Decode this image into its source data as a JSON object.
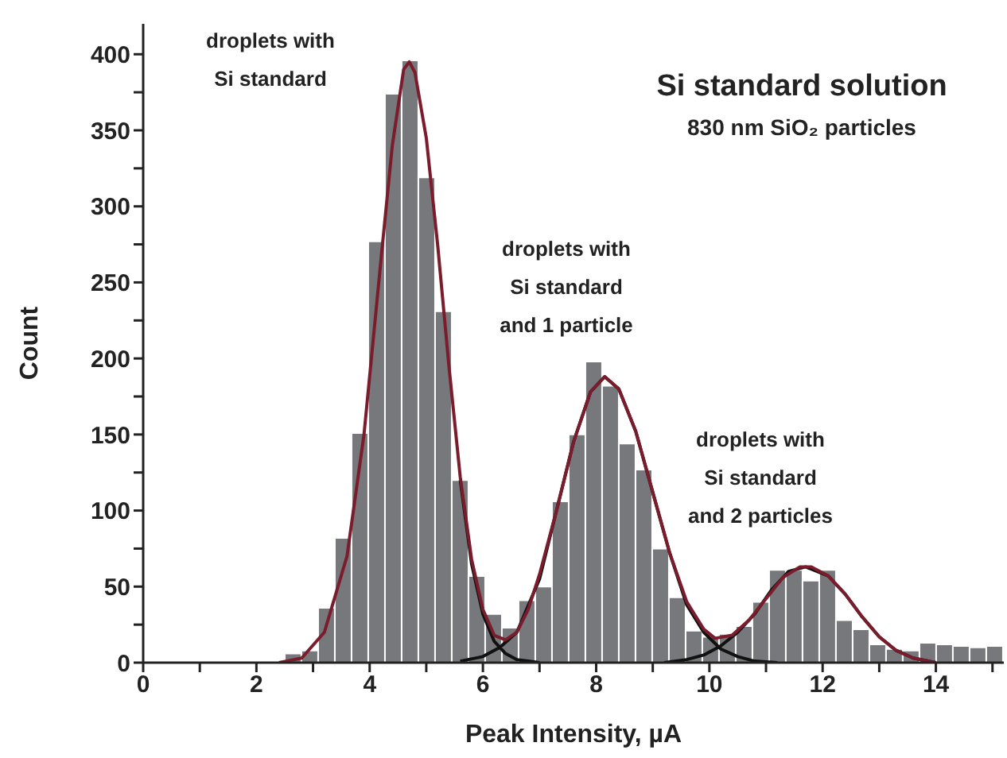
{
  "chart_data": {
    "type": "histogram",
    "title": "Si standard solution",
    "subtitle": "830 nm SiO₂ particles",
    "xlabel": "Peak Intensity, µA",
    "ylabel": "Count",
    "color": "#77787b",
    "bins": [
      1.91,
      2.205,
      2.5,
      2.795,
      3.09,
      3.385,
      3.68,
      3.975,
      4.27,
      4.565,
      4.86,
      5.155,
      5.45,
      5.745,
      6.04,
      6.335,
      6.63,
      6.925,
      7.22,
      7.515,
      7.81,
      8.105,
      8.4,
      8.695,
      8.99,
      9.285,
      9.58,
      9.875,
      10.17,
      10.465,
      10.76,
      11.055,
      11.35,
      11.645,
      11.94,
      12.235,
      12.53,
      12.825,
      13.12,
      13.415,
      13.71,
      14.005,
      14.3,
      14.595,
      14.89,
      15.185
    ],
    "values": [
      1,
      0,
      6,
      8,
      36,
      82,
      151,
      277,
      374,
      396,
      319,
      231,
      120,
      57,
      32,
      23,
      41,
      50,
      106,
      150,
      198,
      182,
      144,
      127,
      75,
      43,
      21,
      17,
      19,
      24,
      40,
      61,
      61,
      54,
      61,
      28,
      22,
      12,
      9,
      8,
      13,
      12,
      11,
      10,
      11
    ],
    "series": [
      {
        "type": "line",
        "color": "#111111",
        "x": [
          5.6,
          5.8,
          6.0,
          6.2,
          6.4,
          6.6,
          6.8,
          7.0
        ],
        "values": [
          120,
          65,
          32,
          14,
          6,
          2,
          1,
          0
        ]
      },
      {
        "type": "line",
        "color": "#111111",
        "x": [
          5.6,
          6.0,
          6.3,
          6.6,
          7.0,
          7.3,
          7.6,
          7.9,
          8.15,
          8.4,
          8.7,
          9.0,
          9.3,
          9.6,
          9.9,
          10.2,
          10.5,
          10.8,
          11.2
        ],
        "values": [
          1,
          4,
          10,
          20,
          55,
          100,
          145,
          178,
          188,
          180,
          152,
          112,
          72,
          38,
          20,
          9,
          4,
          1,
          0
        ]
      },
      {
        "type": "line",
        "color": "#111111",
        "x": [
          9.2,
          9.6,
          9.9,
          10.2,
          10.5,
          10.8,
          11.1,
          11.4,
          11.7,
          12.1,
          12.4,
          12.7,
          13.0,
          13.3,
          13.6,
          14.0
        ],
        "values": [
          0,
          2,
          5,
          11,
          20,
          32,
          48,
          60,
          63,
          57,
          45,
          30,
          17,
          8,
          3,
          0
        ]
      },
      {
        "type": "line",
        "color": "#7b1c2c",
        "x": [
          2.4,
          2.8,
          3.2,
          3.6,
          3.9,
          4.2,
          4.4,
          4.6,
          4.7,
          4.8,
          5.0,
          5.2,
          5.4,
          5.6,
          5.8,
          6.0,
          6.2,
          6.4,
          6.6,
          6.8,
          7.0,
          7.3,
          7.6,
          7.9,
          8.15,
          8.4,
          8.7,
          9.0,
          9.3,
          9.6,
          9.9,
          10.1,
          10.4,
          10.7,
          11.0,
          11.3,
          11.6,
          11.8,
          12.1,
          12.4,
          12.7,
          13.0,
          13.3,
          13.6,
          14.0
        ],
        "values": [
          0,
          3,
          20,
          70,
          150,
          265,
          340,
          390,
          395,
          388,
          345,
          275,
          195,
          122,
          68,
          35,
          18,
          15,
          20,
          35,
          58,
          100,
          145,
          178,
          188,
          180,
          152,
          112,
          72,
          40,
          22,
          16,
          18,
          28,
          42,
          56,
          63,
          63,
          57,
          45,
          30,
          17,
          8,
          3,
          0
        ]
      }
    ],
    "annotations": [
      "droplets with\nSi standard",
      "droplets with\nSi standard\nand 1 particle",
      "droplets with\nSi standard\nand 2 particles"
    ],
    "xlim": [
      0,
      15.2
    ],
    "xticks": [
      0,
      {
        "value": 1,
        "label": null
      },
      2,
      {
        "value": 3,
        "label": null
      },
      4,
      {
        "value": 5,
        "label": null
      },
      6,
      {
        "value": 7,
        "label": null
      },
      8,
      {
        "value": 9,
        "label": null
      },
      10,
      {
        "value": 11,
        "label": null
      },
      12,
      {
        "value": 13,
        "label": null
      },
      14,
      {
        "value": 15,
        "label": null
      }
    ],
    "ylim": [
      0,
      420
    ],
    "yticks": [
      0,
      {
        "value": 25,
        "label": null
      },
      50,
      {
        "value": 75,
        "label": null
      },
      100,
      {
        "value": 125,
        "label": null
      },
      150,
      {
        "value": 175,
        "label": null
      },
      200,
      {
        "value": 225,
        "label": null
      },
      250,
      {
        "value": 275,
        "label": null
      },
      300,
      {
        "value": 325,
        "label": null
      },
      350,
      {
        "value": 375,
        "label": null
      },
      400
    ],
    "grid": false
  }
}
